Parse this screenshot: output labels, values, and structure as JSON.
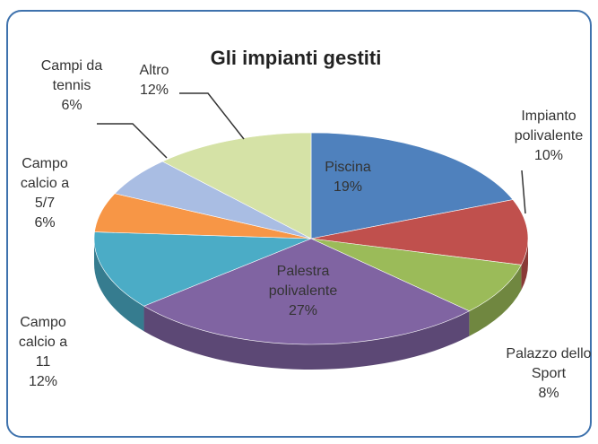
{
  "chart_data": {
    "type": "pie",
    "title": "Gli impianti gestiti",
    "categories": [
      "Piscina",
      "Impianto polivalente",
      "Palazzo dello Sport",
      "Palestra polivalente",
      "Campo calcio a 11",
      "Campo calcio a 5/7",
      "Campi da tennis",
      "Altro"
    ],
    "values": [
      19,
      10,
      8,
      27,
      12,
      6,
      6,
      12
    ],
    "value_labels": [
      "19%",
      "10%",
      "8%",
      "27%",
      "12%",
      "6%",
      "6%",
      "12%"
    ],
    "colors": [
      "#4f81bd",
      "#c0504d",
      "#9bbb59",
      "#8064a2",
      "#4bacc6",
      "#f79646",
      "#a9bde3",
      "#d5e2a6"
    ]
  }
}
